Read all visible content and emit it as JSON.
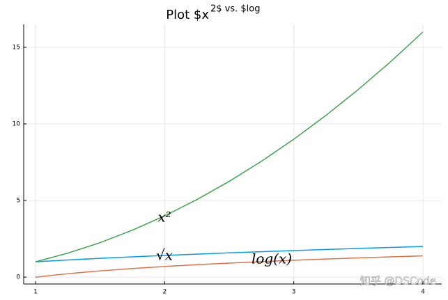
{
  "chart_data": {
    "type": "line",
    "title": "Plot $x",
    "title_superscript": "2$ vs. $log",
    "x": [
      1,
      1.25,
      1.5,
      1.75,
      2,
      2.25,
      2.5,
      2.75,
      3,
      3.25,
      3.5,
      3.75,
      4
    ],
    "series": [
      {
        "color": "#009af9",
        "values": [
          1,
          1.118,
          1.225,
          1.323,
          1.414,
          1.5,
          1.581,
          1.658,
          1.732,
          1.803,
          1.871,
          1.936,
          2
        ]
      },
      {
        "color": "#e26f46",
        "values": [
          0,
          0.223,
          0.405,
          0.56,
          0.693,
          0.811,
          0.916,
          1.012,
          1.099,
          1.179,
          1.253,
          1.325,
          1.386
        ]
      },
      {
        "color": "#3ea44e",
        "values": [
          1,
          1.5625,
          2.25,
          3.0625,
          4,
          5.0625,
          6.25,
          7.5625,
          9,
          10.5625,
          12.25,
          14.0625,
          16
        ]
      }
    ],
    "xlim": [
      0.908,
      4.146
    ],
    "ylim": [
      -0.45,
      16.5
    ],
    "xticks": [
      1,
      2,
      3,
      4
    ],
    "yticks": [
      0,
      5,
      10,
      15
    ],
    "grid": true,
    "annotations": [
      "x²",
      "√x",
      "log(x)"
    ],
    "watermark": "知乎 @DSCode"
  }
}
